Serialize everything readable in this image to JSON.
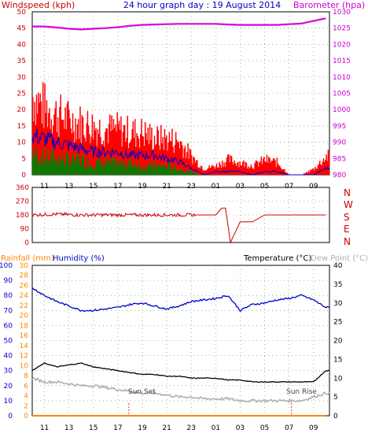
{
  "header": {
    "left_title": "Windspeed (kph)",
    "center_title": "24 hour graph day : 19 August 2014",
    "right_title": "Barometer (hpa)"
  },
  "bottom_header": {
    "rainfall": "Rainfall (mm)",
    "humidity": "Humidity (%)",
    "temperature": "Temperature (°C)",
    "dewpoint": "Dew Point (°C)"
  },
  "direction_labels": [
    "N",
    "W",
    "S",
    "E",
    "N"
  ],
  "annotations": {
    "sunset": "Sun Set",
    "sunrise": "Sun Rise"
  },
  "colors": {
    "wind_max": "#ff0000",
    "wind_avg": "#0000cc",
    "wind_gust": "#008000",
    "barometer": "#dd00dd",
    "direction": "#cc0000",
    "humidity": "#0000cc",
    "temperature": "#000000",
    "dewpoint": "#b0b0b0",
    "rainfall": "#ff8800",
    "left_axis_text": "#cc0000",
    "right_axis_text": "#cc00cc",
    "title_text": "#0000cc"
  },
  "chart_data": [
    {
      "type": "bar",
      "panel": "wind",
      "x_ticks": [
        "11",
        "13",
        "15",
        "17",
        "19",
        "21",
        "23",
        "01",
        "03",
        "05",
        "07",
        "09"
      ],
      "y_left_ticks": [
        "0",
        "5",
        "10",
        "15",
        "20",
        "25",
        "30",
        "35",
        "40",
        "45",
        "50"
      ],
      "y_right_ticks": [
        "980",
        "985",
        "990",
        "995",
        "1000",
        "1005",
        "1010",
        "1015",
        "1020",
        "1025",
        "1030"
      ],
      "ylim_left": [
        0,
        50
      ],
      "ylim_right": [
        980,
        1030
      ],
      "hours": [
        10,
        11,
        12,
        13,
        14,
        15,
        16,
        17,
        18,
        19,
        20,
        21,
        22,
        23,
        24,
        25,
        26,
        27,
        28,
        29,
        30,
        31,
        32,
        33,
        34
      ],
      "wind_max": [
        26,
        22,
        20,
        18,
        17,
        16,
        15,
        15,
        14,
        14,
        12,
        12,
        11,
        6,
        2,
        3,
        5,
        4,
        3,
        5,
        4,
        0,
        0,
        2,
        6
      ],
      "wind_avg": [
        12,
        11,
        10,
        9,
        8,
        7,
        7,
        7,
        6,
        6,
        6,
        5,
        4,
        2,
        0,
        1,
        1,
        1,
        0,
        1,
        1,
        0,
        0,
        0,
        2
      ],
      "wind_gust": [
        7,
        6,
        6,
        5,
        5,
        4,
        4,
        4,
        4,
        3,
        3,
        3,
        2,
        1,
        0,
        0,
        0,
        0,
        0,
        0,
        0,
        0,
        0,
        0,
        0
      ],
      "barometer": [
        1025.5,
        1025.5,
        1025.2,
        1024.8,
        1024.6,
        1024.8,
        1025.0,
        1025.3,
        1025.7,
        1026.0,
        1026.1,
        1026.2,
        1026.3,
        1026.3,
        1026.3,
        1026.3,
        1026.1,
        1026.0,
        1026.0,
        1026.0,
        1026.0,
        1026.2,
        1026.4,
        1027.2,
        1028.0
      ]
    },
    {
      "type": "line",
      "panel": "direction",
      "y_ticks": [
        "0",
        "90",
        "180",
        "270",
        "360"
      ],
      "ylim": [
        0,
        360
      ],
      "hours": [
        10,
        12,
        14,
        16,
        18,
        20,
        22,
        23.5,
        24,
        25,
        25.5,
        25.8,
        26.2,
        27,
        28,
        29,
        30,
        31,
        32,
        33,
        34
      ],
      "direction": [
        180,
        185,
        180,
        180,
        180,
        180,
        180,
        180,
        180,
        180,
        225,
        225,
        0,
        135,
        135,
        180,
        180,
        180,
        180,
        180,
        180
      ]
    },
    {
      "type": "line",
      "panel": "humidity-temperature",
      "y_left_humidity_ticks": [
        "0",
        "10",
        "20",
        "30",
        "40",
        "50",
        "60",
        "70",
        "80",
        "90",
        "100"
      ],
      "y_left_rain_ticks": [
        "0",
        "2",
        "4",
        "6",
        "8",
        "10",
        "12",
        "14",
        "16",
        "18",
        "20",
        "22",
        "24",
        "26",
        "28",
        "30"
      ],
      "y_right_temp_ticks": [
        "0",
        "5",
        "10",
        "15",
        "20",
        "25",
        "30",
        "35",
        "40"
      ],
      "ylim_humidity": [
        0,
        100
      ],
      "ylim_rain": [
        0,
        30
      ],
      "ylim_temp": [
        0,
        40
      ],
      "hours": [
        10,
        11,
        12,
        13,
        14,
        15,
        16,
        17,
        18,
        19,
        20,
        21,
        22,
        23,
        24,
        25,
        26,
        27,
        28,
        29,
        30,
        31,
        32,
        33,
        34
      ],
      "humidity": [
        85,
        80,
        76,
        73,
        70,
        70,
        71,
        72,
        74,
        75,
        73,
        71,
        73,
        76,
        77,
        78,
        80,
        70,
        74,
        75,
        77,
        78,
        80,
        77,
        72
      ],
      "temperature": [
        12,
        14,
        13,
        13.5,
        14,
        13,
        12.5,
        12,
        11.5,
        11,
        11,
        10.5,
        10.5,
        10,
        10,
        10,
        9.5,
        9.5,
        9,
        9,
        9,
        9,
        9,
        9,
        12
      ],
      "dewpoint": [
        10,
        9,
        9,
        8.5,
        8,
        8,
        7.5,
        7,
        6.5,
        6,
        6,
        5.5,
        5,
        5,
        4.5,
        4.5,
        4.5,
        4,
        4,
        4,
        4,
        4,
        4,
        5,
        6
      ],
      "rainfall": [
        0,
        0,
        0,
        0,
        0,
        0,
        0,
        0,
        0,
        0,
        0,
        0,
        0,
        0,
        0,
        0,
        0,
        0,
        0,
        0,
        0,
        0,
        0,
        0,
        0
      ],
      "sunset_hour": 17.9,
      "sunrise_hour": 31.2
    }
  ]
}
